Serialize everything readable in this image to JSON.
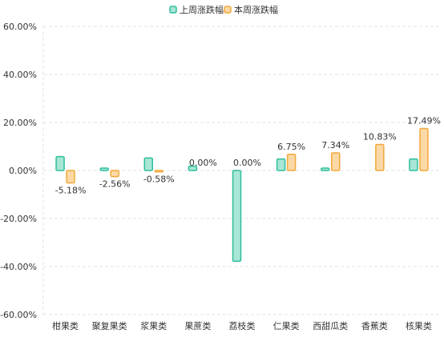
{
  "chart_data": {
    "type": "bar",
    "categories": [
      "柑果类",
      "聚复果类",
      "浆果类",
      "果蔗类",
      "荔枝类",
      "仁果类",
      "西甜瓜类",
      "香蕉类",
      "核果类"
    ],
    "series": [
      {
        "name": "上周涨跌幅",
        "values": [
          5.8,
          1.0,
          5.2,
          1.8,
          -37.8,
          4.8,
          1.0,
          0.0,
          4.8
        ],
        "color": "#2fbf9b",
        "fill": "#a8e6d6"
      },
      {
        "name": "本周涨跌幅",
        "values": [
          -5.18,
          -2.56,
          -0.58,
          0.0,
          0.0,
          6.75,
          7.34,
          10.83,
          17.49
        ],
        "labels": [
          "-5.18%",
          "-2.56%",
          "-0.58%",
          "0.00%",
          "0.00%",
          "6.75%",
          "7.34%",
          "10.83%",
          "17.49%"
        ],
        "color": "#f2a93b",
        "fill": "#fbd9a6"
      }
    ],
    "yticks": [
      "60.00%",
      "40.00%",
      "20.00%",
      "0.00%",
      "-20.00%",
      "-40.00%",
      "-60.00%"
    ],
    "ylim": [
      -60,
      60
    ],
    "grid": true,
    "legend_position": "top-center"
  }
}
